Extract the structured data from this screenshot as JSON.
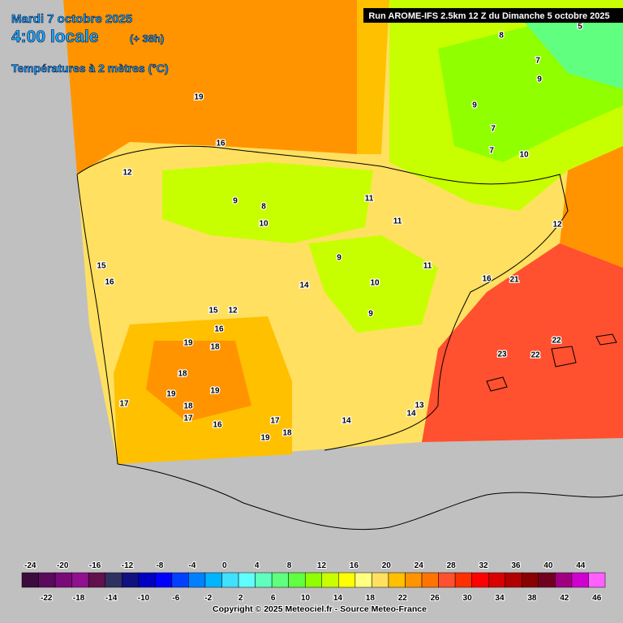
{
  "header": {
    "date": "Mardi 7 octobre 2025",
    "time": "4:00 locale",
    "lead": "(+ 38h)",
    "parameter": "Températures à 2 mètres (°C)",
    "run": "Run AROME-IFS 2.5km 12 Z du Dimanche 5 octobre 2025"
  },
  "map": {
    "contour_labels": [
      19,
      16,
      12,
      9,
      10,
      8,
      11,
      11,
      12,
      16,
      21,
      15,
      16,
      14,
      11,
      9,
      10,
      9,
      12,
      15,
      16,
      19,
      18,
      18,
      19,
      19,
      17,
      18,
      17,
      16,
      17,
      18,
      19,
      14,
      14,
      13,
      23,
      22,
      22,
      7,
      9,
      10,
      7,
      7,
      9,
      5,
      8
    ]
  },
  "legend": {
    "ticks_top": [
      -24,
      -20,
      -16,
      -12,
      -8,
      -4,
      0,
      4,
      8,
      12,
      16,
      20,
      24,
      28,
      32,
      36,
      40,
      44
    ],
    "ticks_bottom": [
      -22,
      -18,
      -14,
      -10,
      -6,
      -2,
      2,
      6,
      10,
      14,
      18,
      22,
      26,
      30,
      34,
      38,
      42,
      46
    ],
    "colors": [
      "#3c0a3c",
      "#5a0a5a",
      "#7a0a7a",
      "#901090",
      "#60104c",
      "#303060",
      "#101080",
      "#0000c0",
      "#0000ff",
      "#0040ff",
      "#0080ff",
      "#00b4ff",
      "#40e0ff",
      "#60ffff",
      "#60ffc0",
      "#60ff80",
      "#60ff40",
      "#90ff00",
      "#c8ff00",
      "#ffff00",
      "#ffff80",
      "#ffe060",
      "#ffc000",
      "#ff9400",
      "#ff7400",
      "#ff5030",
      "#ff3000",
      "#ff0000",
      "#d80000",
      "#b00000",
      "#880000",
      "#700020",
      "#a00080",
      "#d000d0",
      "#ff60ff"
    ]
  },
  "footer": {
    "copyright": "Copyright © 2025 Meteociel.fr - Source Meteo-France"
  }
}
